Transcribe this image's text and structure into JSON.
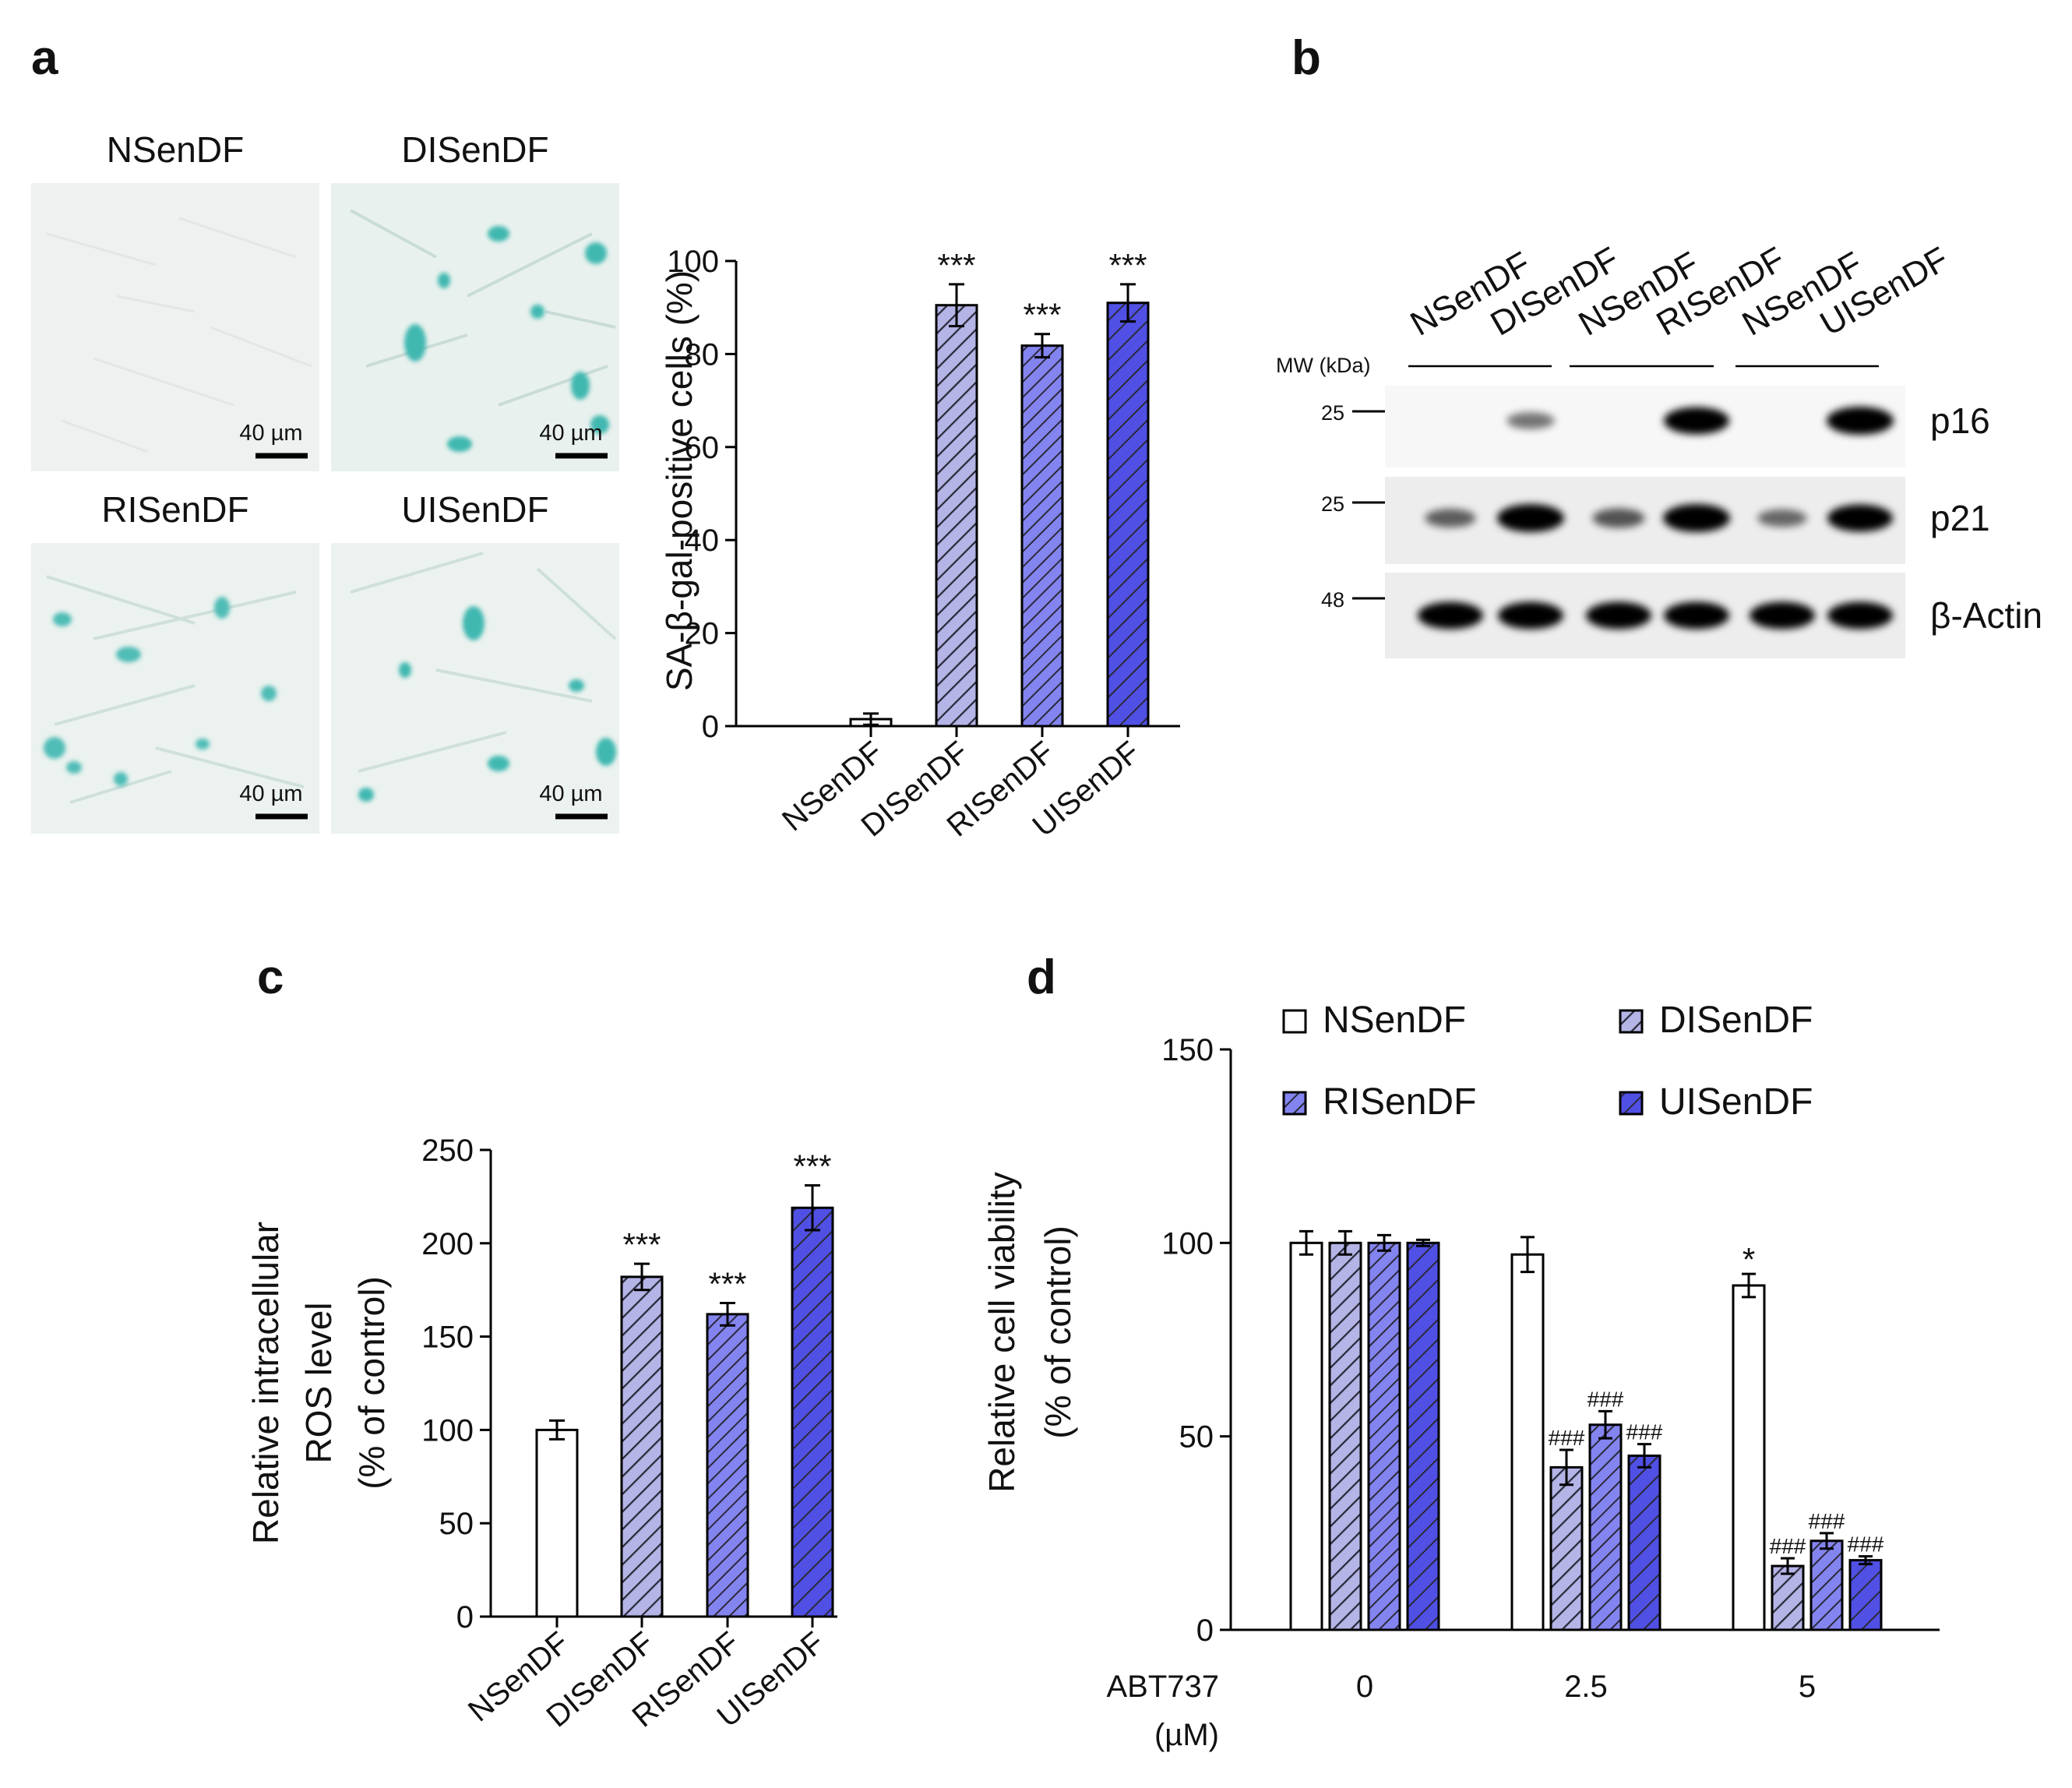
{
  "colors": {
    "nsendf": "#ffffff",
    "disendf": "#b4b4e6",
    "risendf": "#8484f0",
    "uisendf": "#5050e4",
    "hatch_line": "#2a2a3a",
    "cell_stain": "#3fb8b0"
  },
  "panel_a": {
    "label": "a",
    "images": [
      {
        "title": "NSenDF",
        "scale": "40 µm"
      },
      {
        "title": "DISenDF",
        "scale": "40 µm"
      },
      {
        "title": "RISenDF",
        "scale": "40 µm"
      },
      {
        "title": "UISenDF",
        "scale": "40 µm"
      }
    ]
  },
  "panel_b": {
    "label": "b",
    "lanes": [
      "NSenDF",
      "DISenDF",
      "NSenDF",
      "RISenDF",
      "NSenDF",
      "UISenDF"
    ],
    "mw_header": "MW (kDa)",
    "blots": [
      {
        "protein": "p16",
        "mw": "25",
        "intensity": [
          0.0,
          0.35,
          0.0,
          0.95,
          0.0,
          1.0
        ]
      },
      {
        "protein": "p21",
        "mw": "25",
        "intensity": [
          0.45,
          1.0,
          0.5,
          1.0,
          0.4,
          0.95
        ]
      },
      {
        "protein": "β-Actin",
        "mw": "48",
        "intensity": [
          0.95,
          0.95,
          0.95,
          0.95,
          0.95,
          0.95
        ]
      }
    ]
  },
  "panel_c": {
    "label": "c"
  },
  "panel_d": {
    "label": "d"
  },
  "chart_data": [
    {
      "id": "a",
      "type": "bar",
      "categories": [
        "NSenDF",
        "DISenDF",
        "RISenDF",
        "UISenDF"
      ],
      "values": [
        1.5,
        90.5,
        81.8,
        91.0
      ],
      "errors": [
        1.2,
        4.5,
        2.5,
        4.0
      ],
      "annotations": [
        "",
        "***",
        "***",
        "***"
      ],
      "xlabel": "",
      "ylabel": "SA-β-gal-positive cells (%)",
      "ylim": [
        0,
        100
      ],
      "yticks": [
        "0",
        "20",
        "40",
        "60",
        "80",
        "100"
      ]
    },
    {
      "id": "c",
      "type": "bar",
      "categories": [
        "NSenDF",
        "DISenDF",
        "RISenDF",
        "UISenDF"
      ],
      "values": [
        100,
        182,
        162,
        219
      ],
      "errors": [
        5,
        7,
        6,
        12
      ],
      "annotations": [
        "",
        "***",
        "***",
        "***"
      ],
      "xlabel": "",
      "ylabel": [
        "Relative intracellular",
        "ROS level",
        "(% of control)"
      ],
      "ylim": [
        0,
        250
      ],
      "yticks": [
        "0",
        "50",
        "100",
        "150",
        "200",
        "250"
      ]
    },
    {
      "id": "d",
      "type": "bar",
      "xlabel": [
        "ABT737",
        "(µM)"
      ],
      "categories": [
        "0",
        "2.5",
        "5"
      ],
      "series": [
        {
          "name": "NSenDF",
          "values": [
            100,
            97,
            89
          ],
          "errors": [
            3,
            4.5,
            3
          ],
          "annotations": [
            "",
            "",
            "*"
          ]
        },
        {
          "name": "DISenDF",
          "values": [
            100,
            42,
            16.5
          ],
          "errors": [
            3,
            4.5,
            2
          ],
          "annotations": [
            "",
            "###",
            "###"
          ]
        },
        {
          "name": "RISenDF",
          "values": [
            100,
            53,
            23
          ],
          "errors": [
            2,
            3.5,
            2
          ],
          "annotations": [
            "",
            "###",
            "###"
          ]
        },
        {
          "name": "UISenDF",
          "values": [
            100,
            45,
            18
          ],
          "errors": [
            0.8,
            3,
            1
          ],
          "annotations": [
            "",
            "###",
            "###"
          ]
        }
      ],
      "ylabel": [
        "Relative cell viability",
        "(% of control)"
      ],
      "ylim": [
        0,
        150
      ],
      "yticks": [
        "0",
        "50",
        "100",
        "150"
      ],
      "legend": "top"
    }
  ]
}
